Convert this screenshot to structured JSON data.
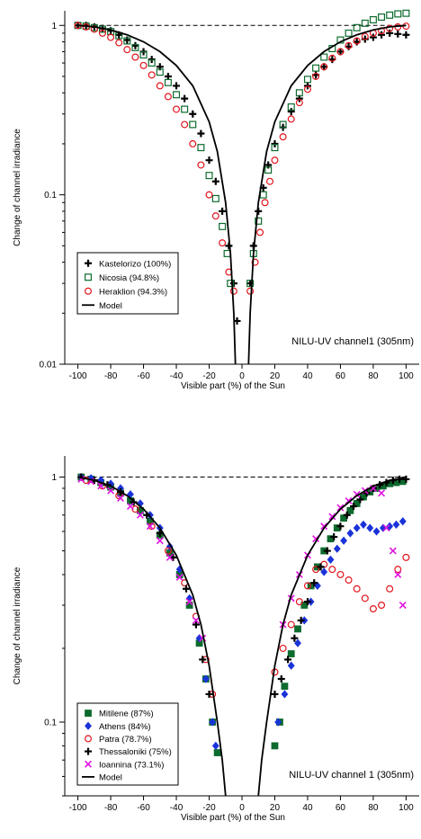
{
  "chart_data": [
    {
      "type": "scatter",
      "yscale": "log",
      "xlim": [
        -108,
        108
      ],
      "ylim": [
        0.01,
        1.22
      ],
      "x_ticks": [
        -100,
        -80,
        -60,
        -40,
        -20,
        0,
        20,
        40,
        60,
        80,
        100
      ],
      "y_ticks": [
        {
          "v": 0.01,
          "label": "0.01"
        },
        {
          "v": 0.1,
          "label": "0.1"
        },
        {
          "v": 1,
          "label": "1"
        }
      ],
      "xlabel": "Visible part (%) of the Sun",
      "ylabel": "Change of channel irradiance",
      "annotation": "NILU-UV channel1 (305nm)",
      "legend_position": "lower-left",
      "reference_line": 1,
      "series": [
        {
          "name": "Kastelorizo (100%)",
          "marker": "plus",
          "color": "#000000",
          "x": [
            -100,
            -95,
            -90,
            -85,
            -80,
            -75,
            -70,
            -65,
            -60,
            -55,
            -50,
            -45,
            -40,
            -35,
            -30,
            -25,
            -20,
            -16,
            -12,
            -8,
            -5,
            -3,
            5,
            7,
            10,
            13,
            16,
            20,
            25,
            30,
            35,
            40,
            45,
            50,
            55,
            60,
            65,
            70,
            75,
            80,
            85,
            90,
            95,
            100
          ],
          "y": [
            1.0,
            1.0,
            0.98,
            0.96,
            0.93,
            0.88,
            0.82,
            0.76,
            0.7,
            0.63,
            0.57,
            0.5,
            0.44,
            0.37,
            0.3,
            0.23,
            0.16,
            0.12,
            0.08,
            0.05,
            0.03,
            0.018,
            0.03,
            0.05,
            0.08,
            0.11,
            0.15,
            0.2,
            0.25,
            0.31,
            0.37,
            0.44,
            0.51,
            0.57,
            0.63,
            0.7,
            0.75,
            0.8,
            0.83,
            0.85,
            0.88,
            0.9,
            0.89,
            0.88
          ]
        },
        {
          "name": "Nicosia (94.8%)",
          "marker": "square",
          "color": "#0d6b2e",
          "x": [
            -100,
            -95,
            -90,
            -85,
            -80,
            -75,
            -70,
            -65,
            -60,
            -55,
            -50,
            -45,
            -40,
            -35,
            -30,
            -25,
            -20,
            -16,
            -12,
            -9,
            -7,
            5,
            7,
            10,
            13,
            16,
            20,
            25,
            30,
            35,
            40,
            45,
            50,
            55,
            60,
            65,
            70,
            75,
            80,
            85,
            90,
            95,
            100
          ],
          "y": [
            1.0,
            0.99,
            0.97,
            0.95,
            0.92,
            0.87,
            0.81,
            0.74,
            0.67,
            0.6,
            0.53,
            0.46,
            0.39,
            0.32,
            0.26,
            0.19,
            0.13,
            0.095,
            0.065,
            0.045,
            0.03,
            0.03,
            0.045,
            0.07,
            0.1,
            0.14,
            0.19,
            0.26,
            0.33,
            0.4,
            0.48,
            0.56,
            0.65,
            0.73,
            0.82,
            0.9,
            0.97,
            1.03,
            1.08,
            1.12,
            1.15,
            1.17,
            1.18
          ]
        },
        {
          "name": "Heraklion (94.3%)",
          "marker": "circle",
          "color": "#e0141c",
          "x": [
            -100,
            -95,
            -90,
            -85,
            -80,
            -75,
            -70,
            -65,
            -60,
            -55,
            -50,
            -45,
            -40,
            -35,
            -30,
            -25,
            -20,
            -16,
            -12,
            -8,
            -5,
            5,
            8,
            11,
            14,
            17,
            20,
            25,
            30,
            35,
            40,
            45,
            50,
            55,
            60,
            65,
            70,
            75,
            80,
            85,
            90,
            95,
            100
          ],
          "y": [
            1.0,
            0.98,
            0.95,
            0.9,
            0.85,
            0.79,
            0.72,
            0.65,
            0.58,
            0.51,
            0.44,
            0.38,
            0.32,
            0.26,
            0.2,
            0.15,
            0.1,
            0.075,
            0.052,
            0.035,
            0.027,
            0.027,
            0.04,
            0.06,
            0.09,
            0.12,
            0.16,
            0.22,
            0.28,
            0.35,
            0.42,
            0.5,
            0.57,
            0.64,
            0.7,
            0.76,
            0.81,
            0.86,
            0.9,
            0.93,
            0.96,
            0.98,
            0.99
          ]
        },
        {
          "name": "Model",
          "marker": "line",
          "color": "#000000",
          "x": [
            -100,
            -90,
            -80,
            -70,
            -60,
            -50,
            -40,
            -30,
            -20,
            -15,
            -10,
            -7,
            -5,
            -4,
            4,
            5,
            7,
            10,
            15,
            20,
            30,
            40,
            50,
            60,
            70,
            80,
            90,
            100
          ],
          "y": [
            1.0,
            0.98,
            0.94,
            0.88,
            0.8,
            0.7,
            0.58,
            0.44,
            0.27,
            0.18,
            0.09,
            0.045,
            0.02,
            0.01,
            0.01,
            0.02,
            0.045,
            0.09,
            0.18,
            0.27,
            0.44,
            0.58,
            0.7,
            0.8,
            0.88,
            0.94,
            0.98,
            1.0
          ]
        }
      ]
    },
    {
      "type": "scatter",
      "yscale": "log",
      "xlim": [
        -108,
        108
      ],
      "ylim": [
        0.05,
        1.22
      ],
      "x_ticks": [
        -100,
        -80,
        -60,
        -40,
        -20,
        0,
        20,
        40,
        60,
        80,
        100
      ],
      "y_ticks": [
        {
          "v": 0.1,
          "label": "0.1"
        },
        {
          "v": 1,
          "label": "1"
        }
      ],
      "xlabel": "Visible part (%) of the Sun",
      "ylabel": "Change of channel irradiance",
      "annotation": "NILU-UV channel 1 (305nm)",
      "legend_position": "lower-left",
      "reference_line": 1,
      "series": [
        {
          "name": "Mitilene (87%)",
          "marker": "filled-square",
          "color": "#0d6b2e",
          "x": [
            -98,
            -92,
            -86,
            -80,
            -74,
            -68,
            -62,
            -56,
            -50,
            -44,
            -38,
            -32,
            -26,
            -22,
            -18,
            -15,
            20,
            23,
            26,
            30,
            34,
            38,
            42,
            46,
            50,
            54,
            58,
            62,
            66,
            70,
            74,
            78,
            82,
            86,
            90,
            94,
            98
          ],
          "y": [
            1.0,
            0.98,
            0.95,
            0.91,
            0.86,
            0.8,
            0.73,
            0.66,
            0.58,
            0.49,
            0.4,
            0.3,
            0.21,
            0.15,
            0.1,
            0.075,
            0.08,
            0.1,
            0.14,
            0.19,
            0.24,
            0.3,
            0.36,
            0.43,
            0.5,
            0.56,
            0.62,
            0.68,
            0.73,
            0.78,
            0.83,
            0.87,
            0.9,
            0.92,
            0.94,
            0.95,
            0.96
          ]
        },
        {
          "name": "Athens (84%)",
          "marker": "filled-diamond",
          "color": "#1a33d9",
          "x": [
            -98,
            -92,
            -86,
            -80,
            -74,
            -68,
            -62,
            -56,
            -50,
            -44,
            -38,
            -32,
            -26,
            -22,
            -18,
            -16,
            22,
            26,
            30,
            34,
            38,
            42,
            46,
            50,
            54,
            58,
            62,
            66,
            70,
            74,
            78,
            82,
            86,
            90,
            94,
            98
          ],
          "y": [
            1.0,
            0.99,
            0.97,
            0.94,
            0.9,
            0.85,
            0.78,
            0.7,
            0.62,
            0.52,
            0.42,
            0.32,
            0.22,
            0.15,
            0.1,
            0.08,
            0.1,
            0.13,
            0.17,
            0.21,
            0.26,
            0.31,
            0.36,
            0.41,
            0.46,
            0.51,
            0.55,
            0.59,
            0.62,
            0.64,
            0.62,
            0.6,
            0.62,
            0.63,
            0.64,
            0.66
          ]
        },
        {
          "name": "Patra (78.7%)",
          "marker": "circle",
          "color": "#e0141c",
          "x": [
            -95,
            -85,
            -75,
            -65,
            -55,
            -45,
            -35,
            -28,
            -22,
            -18,
            20,
            25,
            30,
            35,
            40,
            45,
            50,
            55,
            60,
            65,
            70,
            75,
            80,
            85,
            90,
            95,
            100
          ],
          "y": [
            0.97,
            0.92,
            0.84,
            0.74,
            0.63,
            0.5,
            0.37,
            0.27,
            0.18,
            0.13,
            0.16,
            0.2,
            0.25,
            0.31,
            0.36,
            0.42,
            0.44,
            0.42,
            0.4,
            0.38,
            0.35,
            0.32,
            0.29,
            0.3,
            0.35,
            0.42,
            0.47
          ]
        },
        {
          "name": "Thessaloniki (75%)",
          "marker": "plus",
          "color": "#000000",
          "x": [
            -98,
            -90,
            -82,
            -74,
            -66,
            -58,
            -50,
            -42,
            -34,
            -28,
            -24,
            -20,
            20,
            24,
            28,
            32,
            36,
            40,
            44,
            48,
            52,
            56,
            60,
            64,
            68,
            72,
            76,
            80,
            84,
            88,
            92,
            96,
            100
          ],
          "y": [
            1.0,
            0.97,
            0.93,
            0.87,
            0.79,
            0.7,
            0.59,
            0.47,
            0.35,
            0.25,
            0.18,
            0.13,
            0.13,
            0.15,
            0.18,
            0.22,
            0.26,
            0.31,
            0.37,
            0.43,
            0.5,
            0.57,
            0.63,
            0.7,
            0.76,
            0.81,
            0.86,
            0.9,
            0.93,
            0.95,
            0.97,
            0.98,
            0.98
          ]
        },
        {
          "name": "Ioannina (73.1%)",
          "marker": "x",
          "color": "#e012e0",
          "x": [
            -98,
            -92,
            -86,
            -80,
            -74,
            -68,
            -62,
            -56,
            -50,
            -44,
            -38,
            -32,
            -28,
            -24,
            25,
            30,
            35,
            40,
            45,
            50,
            55,
            60,
            65,
            70,
            75,
            80,
            85,
            88,
            92,
            95,
            98
          ],
          "y": [
            0.98,
            0.96,
            0.92,
            0.88,
            0.82,
            0.76,
            0.7,
            0.63,
            0.55,
            0.47,
            0.39,
            0.31,
            0.26,
            0.22,
            0.25,
            0.32,
            0.4,
            0.48,
            0.56,
            0.63,
            0.69,
            0.75,
            0.8,
            0.85,
            0.88,
            0.9,
            0.86,
            0.62,
            0.5,
            0.4,
            0.3
          ]
        },
        {
          "name": "Model",
          "marker": "line",
          "color": "#000000",
          "x": [
            -100,
            -90,
            -80,
            -70,
            -60,
            -50,
            -40,
            -30,
            -25,
            -20,
            -15,
            -12,
            -10,
            10,
            12,
            15,
            20,
            25,
            30,
            40,
            50,
            60,
            70,
            80,
            90,
            100
          ],
          "y": [
            1.0,
            0.97,
            0.92,
            0.84,
            0.74,
            0.62,
            0.48,
            0.33,
            0.25,
            0.17,
            0.1,
            0.07,
            0.05,
            0.05,
            0.07,
            0.1,
            0.17,
            0.25,
            0.33,
            0.48,
            0.62,
            0.74,
            0.84,
            0.92,
            0.97,
            1.0
          ]
        }
      ]
    }
  ]
}
